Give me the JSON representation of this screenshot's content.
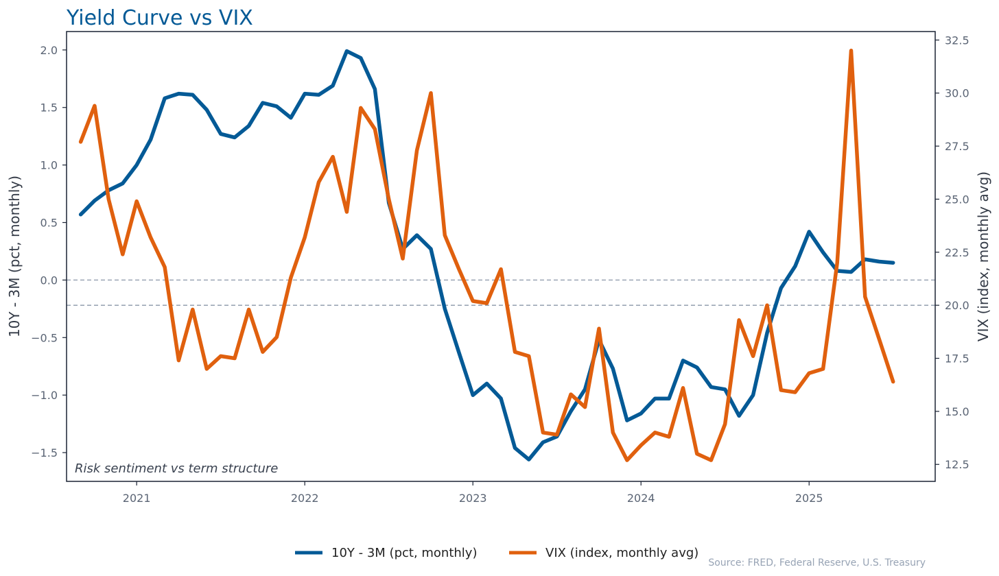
{
  "chart_data": {
    "type": "line",
    "title": "Yield Curve vs VIX",
    "annotation": "Risk sentiment vs term structure",
    "source": "Source: FRED, Federal Reserve, U.S. Treasury",
    "xlim": [
      2020.583,
      2025.75
    ],
    "x_ticks": [
      "2021",
      "2022",
      "2023",
      "2024",
      "2025"
    ],
    "x_tick_values": [
      2021,
      2022,
      2023,
      2024,
      2025
    ],
    "x": [
      2020.667,
      2020.75,
      2020.833,
      2020.917,
      2021.0,
      2021.083,
      2021.167,
      2021.25,
      2021.333,
      2021.417,
      2021.5,
      2021.583,
      2021.667,
      2021.75,
      2021.833,
      2021.917,
      2022.0,
      2022.083,
      2022.167,
      2022.25,
      2022.333,
      2022.417,
      2022.5,
      2022.583,
      2022.667,
      2022.75,
      2022.833,
      2022.917,
      2023.0,
      2023.083,
      2023.167,
      2023.25,
      2023.333,
      2023.417,
      2023.5,
      2023.583,
      2023.667,
      2023.75,
      2023.833,
      2023.917,
      2024.0,
      2024.083,
      2024.167,
      2024.25,
      2024.333,
      2024.417,
      2024.5,
      2024.583,
      2024.667,
      2024.75,
      2024.833,
      2024.917,
      2025.0,
      2025.083,
      2025.167,
      2025.25,
      2025.333,
      2025.417,
      2025.5
    ],
    "left_axis": {
      "label": "10Y - 3M (pct, monthly)",
      "ylim": [
        -1.75,
        2.16
      ],
      "ticks": [
        -1.5,
        -1.0,
        -0.5,
        0.0,
        0.5,
        1.0,
        1.5,
        2.0
      ],
      "tick_labels": [
        "−1.5",
        "−1.0",
        "−0.5",
        "0.0",
        "0.5",
        "1.0",
        "1.5",
        "2.0"
      ]
    },
    "right_axis": {
      "label": "VIX (index, monthly avg)",
      "ylim": [
        11.7,
        32.9
      ],
      "ticks": [
        12.5,
        15.0,
        17.5,
        20.0,
        22.5,
        25.0,
        27.5,
        30.0,
        32.5
      ],
      "tick_labels": [
        "12.5",
        "15.0",
        "17.5",
        "20.0",
        "22.5",
        "25.0",
        "27.5",
        "30.0",
        "32.5"
      ]
    },
    "reference_lines": [
      {
        "axis": "left",
        "value": 0.0
      },
      {
        "axis": "right",
        "value": 20.0
      }
    ],
    "series": [
      {
        "name": "10Y - 3M (pct, monthly)",
        "axis": "left",
        "color": "#045a96",
        "values": [
          0.57,
          0.69,
          0.78,
          0.84,
          1.0,
          1.22,
          1.58,
          1.62,
          1.61,
          1.48,
          1.27,
          1.24,
          1.34,
          1.54,
          1.51,
          1.41,
          1.62,
          1.61,
          1.69,
          1.99,
          1.93,
          1.66,
          0.67,
          0.27,
          0.39,
          0.27,
          -0.25,
          -0.63,
          -1.0,
          -0.9,
          -1.03,
          -1.46,
          -1.56,
          -1.41,
          -1.36,
          -1.14,
          -0.95,
          -0.52,
          -0.77,
          -1.22,
          -1.16,
          -1.03,
          -1.03,
          -0.7,
          -0.76,
          -0.93,
          -0.95,
          -1.18,
          -1.0,
          -0.46,
          -0.07,
          0.12,
          0.42,
          0.24,
          0.08,
          0.07,
          0.18,
          0.16,
          0.15
        ]
      },
      {
        "name": "VIX (index, monthly avg)",
        "axis": "right",
        "color": "#e0600e",
        "values": [
          27.7,
          29.4,
          25.0,
          22.4,
          24.9,
          23.2,
          21.8,
          17.4,
          19.8,
          17.0,
          17.6,
          17.5,
          19.8,
          17.8,
          18.5,
          21.3,
          23.2,
          25.8,
          27.0,
          24.4,
          29.3,
          28.3,
          25.0,
          22.2,
          27.3,
          30.0,
          23.3,
          21.7,
          20.2,
          20.1,
          21.7,
          17.8,
          17.6,
          14.0,
          13.9,
          15.8,
          15.2,
          18.9,
          14.0,
          12.7,
          13.4,
          14.0,
          13.8,
          16.1,
          13.0,
          12.7,
          14.4,
          19.3,
          17.6,
          20.0,
          16.0,
          15.9,
          16.8,
          17.0,
          22.0,
          32.0,
          20.4,
          18.4,
          16.4
        ]
      }
    ],
    "legend_position": "bottom-center"
  }
}
